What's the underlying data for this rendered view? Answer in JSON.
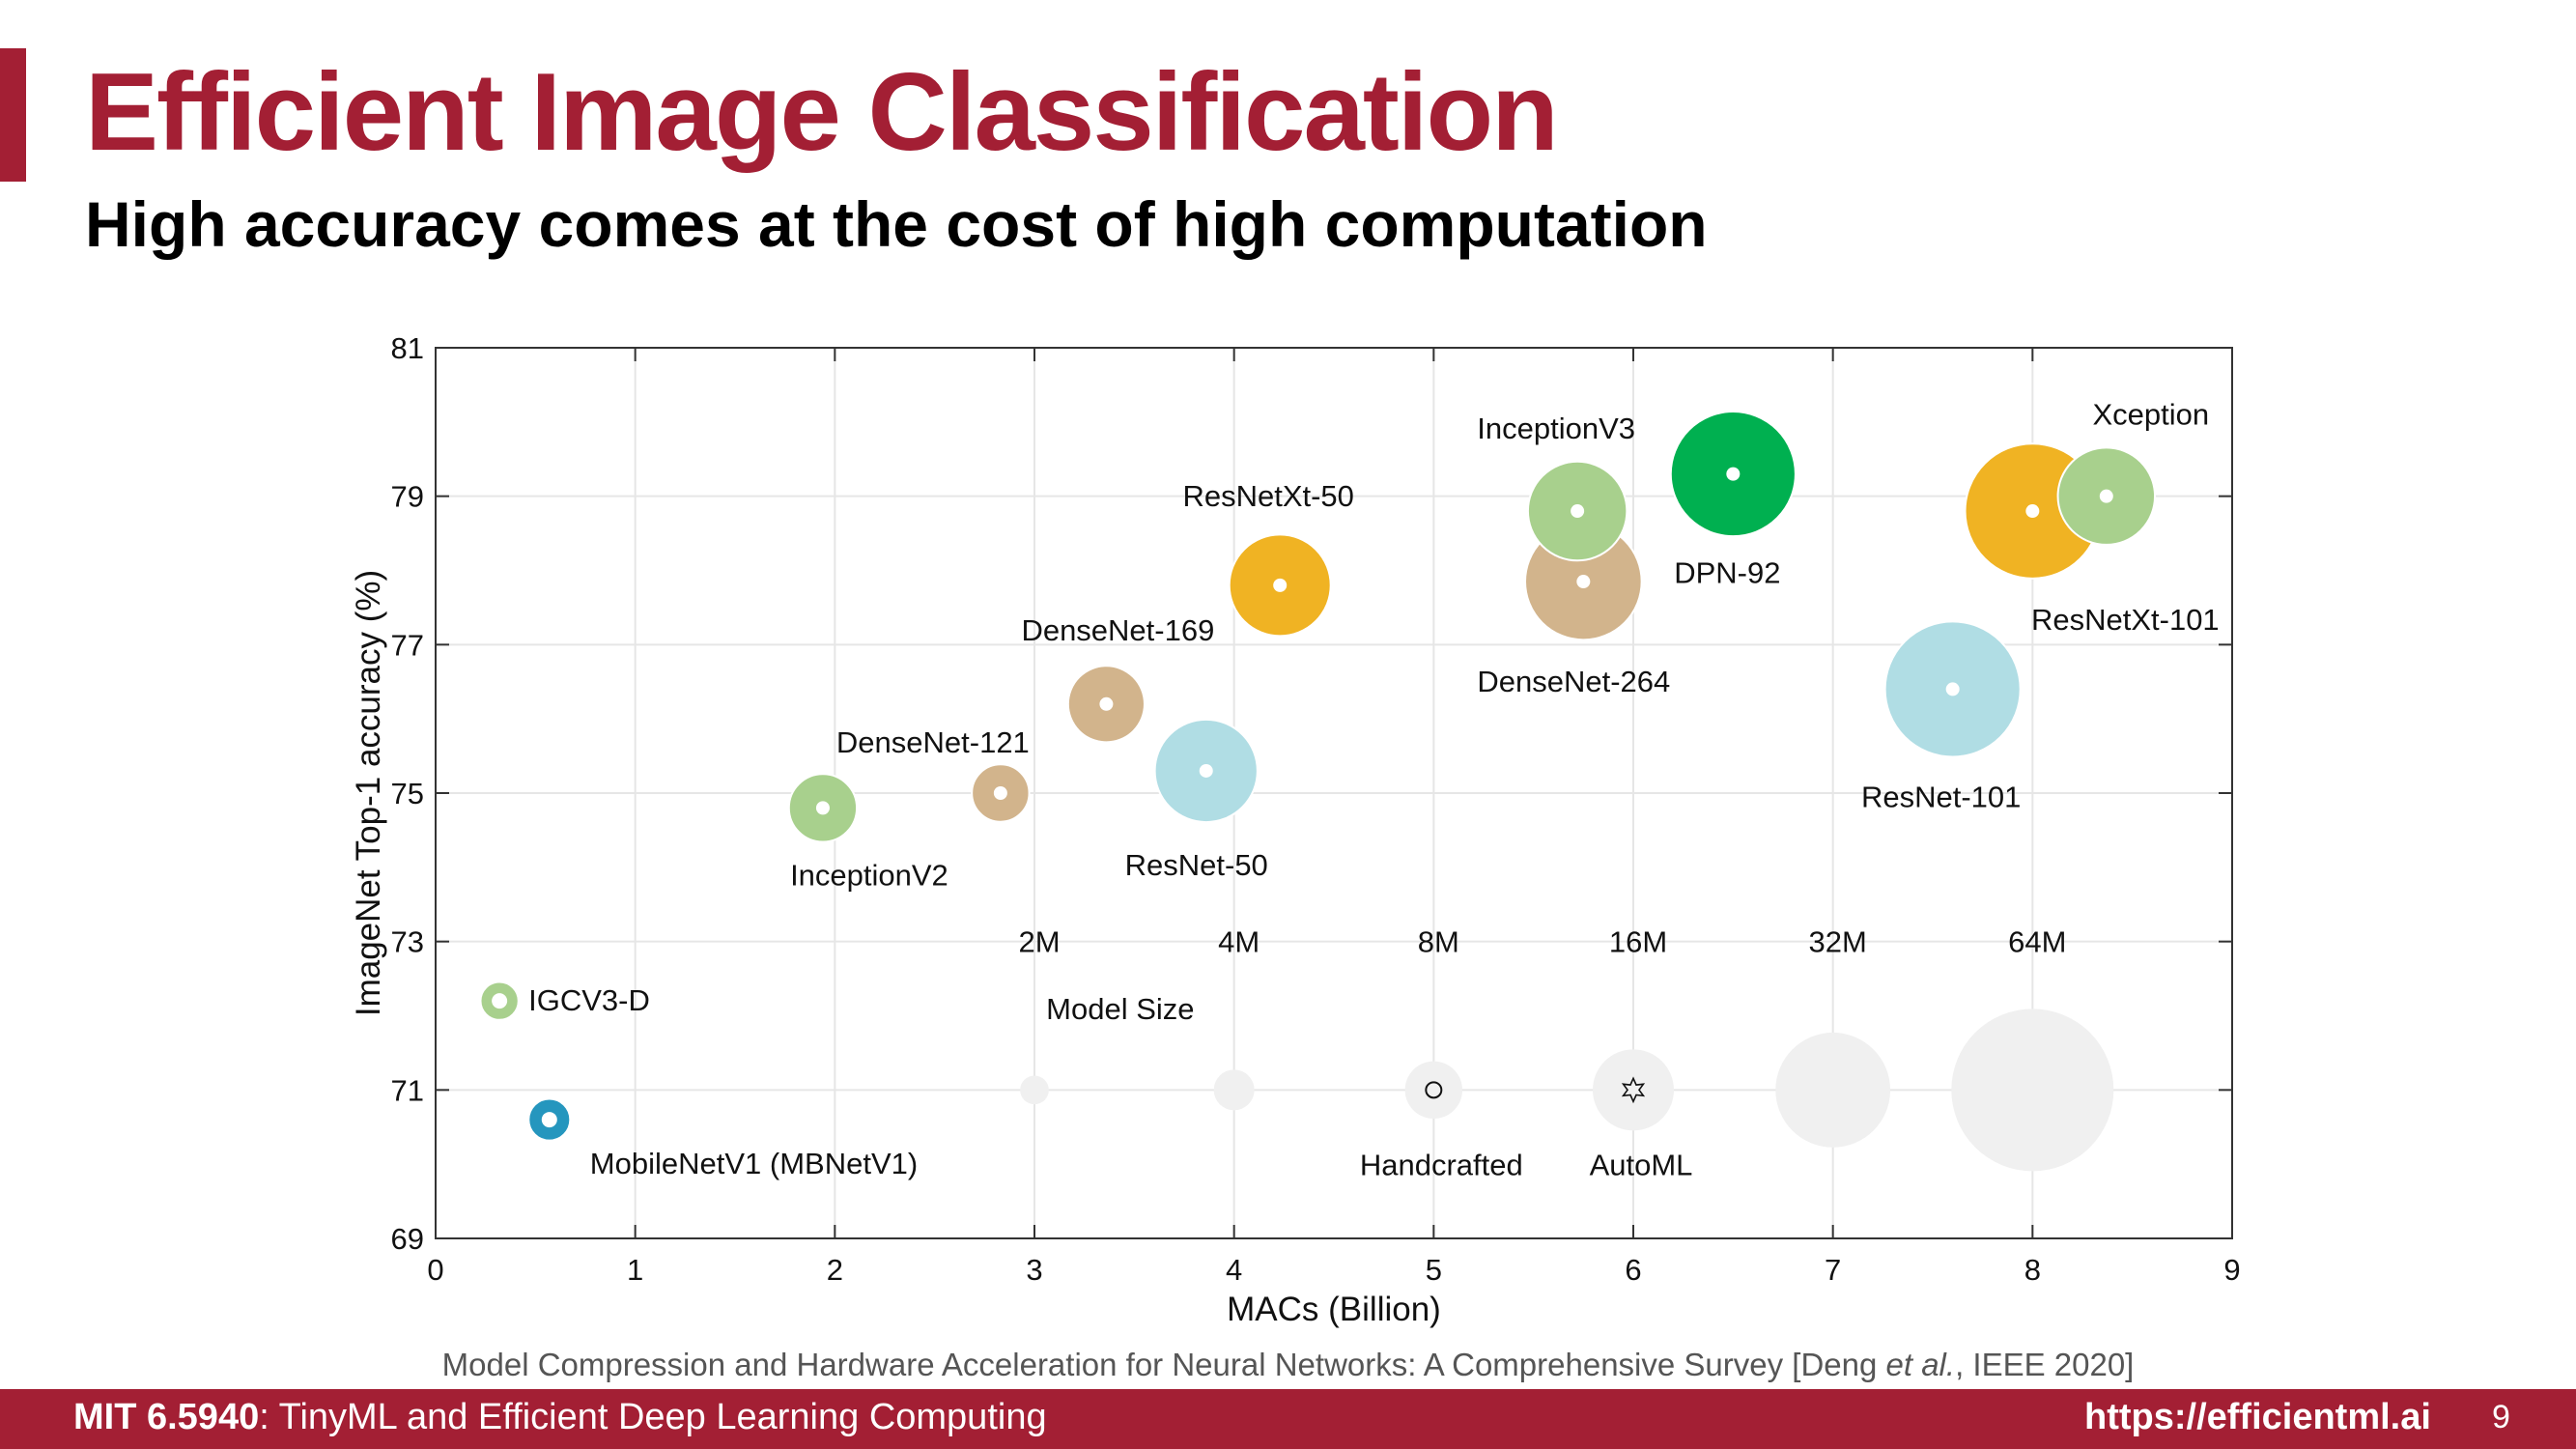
{
  "slide": {
    "title": "Efficient Image Classification",
    "subtitle": "High accuracy comes at the cost of high computation",
    "citation": {
      "before": "Model Compression and Hardware Acceleration for Neural Networks: A Comprehensive Survey [Deng ",
      "italic": "et al.",
      "after": ", IEEE 2020]"
    },
    "footer": {
      "course_bold": "MIT 6.5940",
      "course_rest": ": TinyML and Efficient Deep Learning Computing",
      "url": "https://efficientml.ai",
      "page_number": "9"
    },
    "accent_color": "#a31f34"
  },
  "chart_data": {
    "type": "scatter",
    "subtype": "bubble",
    "title": "",
    "xlabel": "MACs (Billion)",
    "ylabel": "ImageNet Top-1 accuracy (%)",
    "xlim": [
      0,
      9
    ],
    "ylim": [
      69,
      81
    ],
    "xticks": [
      0,
      1,
      2,
      3,
      4,
      5,
      6,
      7,
      8,
      9
    ],
    "yticks": [
      69,
      71,
      73,
      75,
      77,
      79,
      81
    ],
    "grid": true,
    "size_encoding": "Model Size (parameters)",
    "models": [
      {
        "name": "IGCV3-D",
        "macs": 0.32,
        "accuracy": 72.2,
        "params_m": 3.5,
        "color": "#a8d08d",
        "ring": true
      },
      {
        "name": "MobileNetV1 (MBNetV1)",
        "macs": 0.57,
        "accuracy": 70.6,
        "params_m": 4.2,
        "color": "#2596be",
        "ring": true
      },
      {
        "name": "InceptionV2",
        "macs": 1.94,
        "accuracy": 74.8,
        "params_m": 11.2,
        "color": "#a8d08d"
      },
      {
        "name": "DenseNet-121",
        "macs": 2.83,
        "accuracy": 75.0,
        "params_m": 8.0,
        "color": "#d2b48c"
      },
      {
        "name": "DenseNet-169",
        "macs": 3.36,
        "accuracy": 76.2,
        "params_m": 14.2,
        "color": "#d2b48c"
      },
      {
        "name": "ResNet-50",
        "macs": 3.86,
        "accuracy": 75.3,
        "params_m": 25.6,
        "color": "#b0dde4"
      },
      {
        "name": "ResNetXt-50",
        "macs": 4.23,
        "accuracy": 77.8,
        "params_m": 25.0,
        "color": "#f0b323"
      },
      {
        "name": "DenseNet-264",
        "macs": 5.75,
        "accuracy": 77.85,
        "params_m": 33.0,
        "color": "#d2b48c"
      },
      {
        "name": "InceptionV3",
        "macs": 5.72,
        "accuracy": 78.8,
        "params_m": 23.8,
        "color": "#a8d08d"
      },
      {
        "name": "DPN-92",
        "macs": 6.5,
        "accuracy": 79.3,
        "params_m": 37.8,
        "color": "#00b050"
      },
      {
        "name": "ResNet-101",
        "macs": 7.6,
        "accuracy": 76.4,
        "params_m": 44.5,
        "color": "#b0dde4"
      },
      {
        "name": "ResNetXt-101",
        "macs": 8.0,
        "accuracy": 78.8,
        "params_m": 44.2,
        "color": "#f0b323"
      },
      {
        "name": "Xception",
        "macs": 8.37,
        "accuracy": 79.0,
        "params_m": 22.9,
        "color": "#a8d08d"
      }
    ],
    "size_legend": {
      "title": "Model Size",
      "y": 71,
      "items": [
        {
          "label": "2M",
          "macs": 3,
          "params_m": 2
        },
        {
          "label": "4M",
          "macs": 4,
          "params_m": 4
        },
        {
          "label": "8M",
          "macs": 5,
          "params_m": 8
        },
        {
          "label": "16M",
          "macs": 6,
          "params_m": 16
        },
        {
          "label": "32M",
          "macs": 7,
          "params_m": 32
        },
        {
          "label": "64M",
          "macs": 8,
          "params_m": 64
        }
      ],
      "color": "#f0f0f0"
    },
    "marker_legend": [
      {
        "label": "Handcrafted",
        "macs": 5,
        "marker": "circle"
      },
      {
        "label": "AutoML",
        "macs": 6,
        "marker": "star"
      }
    ]
  }
}
